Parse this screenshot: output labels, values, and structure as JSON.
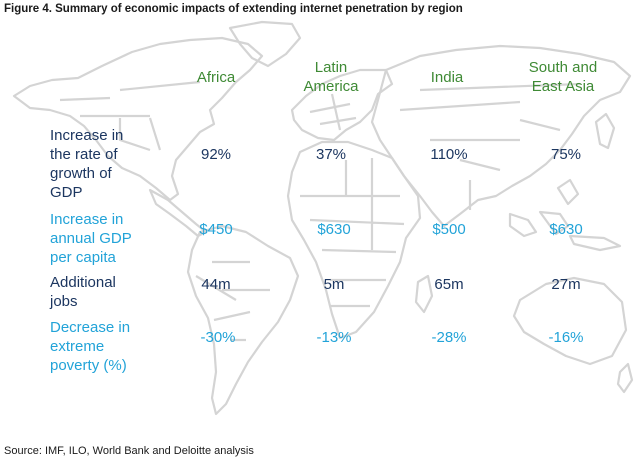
{
  "figure": {
    "title": "Figure 4. Summary of economic impacts of extending internet penetration by region",
    "source": "Source: IMF, ILO, World Bank and Deloitte analysis"
  },
  "colors": {
    "region_header": "#3f8a35",
    "dark_metric": "#1c3660",
    "light_metric": "#22a3d8",
    "map_outline": "#d4d4d4"
  },
  "regions": {
    "africa": "Africa",
    "latin_america_line1": "Latin",
    "latin_america_line2": "America",
    "india": "India",
    "south_east_asia_line1": "South and",
    "south_east_asia_line2": "East Asia"
  },
  "metrics": [
    {
      "label_lines": [
        "Increase in",
        "the rate of",
        "growth of",
        "GDP"
      ],
      "values": [
        "92%",
        "37%",
        "110%",
        "75%"
      ]
    },
    {
      "label_lines": [
        "Increase in",
        "annual GDP",
        "per capita"
      ],
      "values": [
        "$450",
        "$630",
        "$500",
        "$630"
      ]
    },
    {
      "label_lines": [
        "Additional",
        "jobs"
      ],
      "values": [
        "44m",
        "5m",
        "65m",
        "27m"
      ]
    },
    {
      "label_lines": [
        "Decrease in",
        "extreme",
        "poverty (%)"
      ],
      "values": [
        "-30%",
        "-13%",
        "-28%",
        "-16%"
      ]
    }
  ]
}
